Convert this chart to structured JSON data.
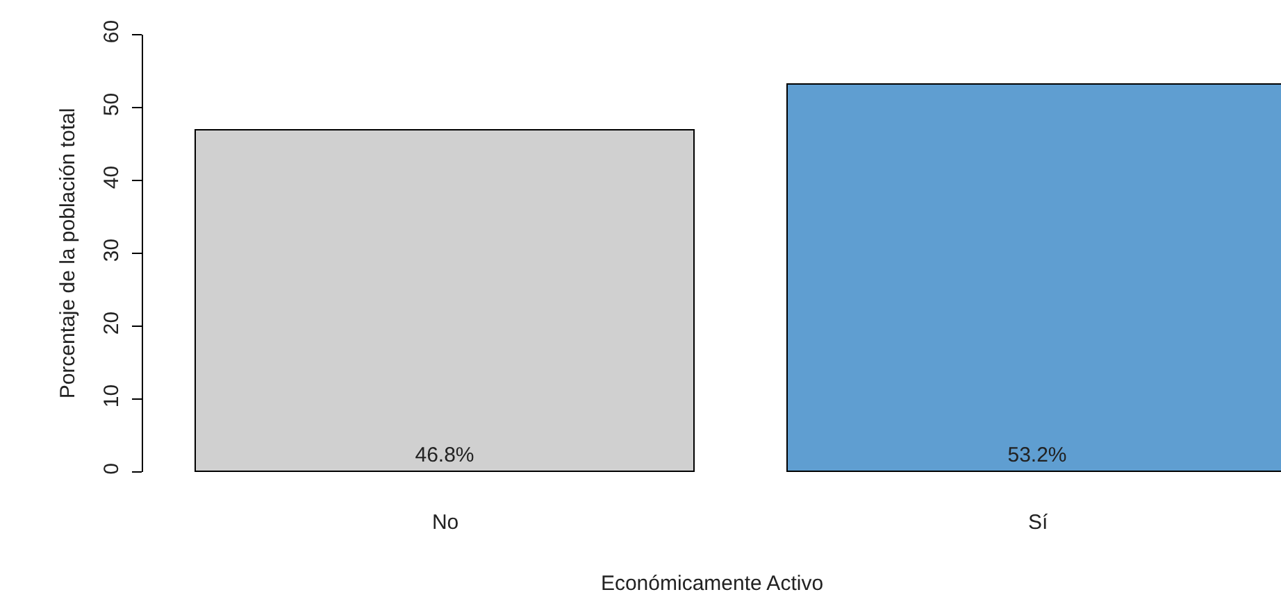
{
  "chart_data": {
    "type": "bar",
    "categories": [
      "No",
      "Sí"
    ],
    "values": [
      46.8,
      53.2
    ],
    "value_labels": [
      "46.8%",
      "53.2%"
    ],
    "colors": [
      "#d0d0d0",
      "#5f9ed1"
    ],
    "xlabel": "Económicamente Activo",
    "ylabel": "Porcentaje de la población total",
    "ylim": [
      0,
      60
    ],
    "yticks": [
      0,
      10,
      20,
      30,
      40,
      50,
      60
    ],
    "grid": false,
    "legend": false
  }
}
